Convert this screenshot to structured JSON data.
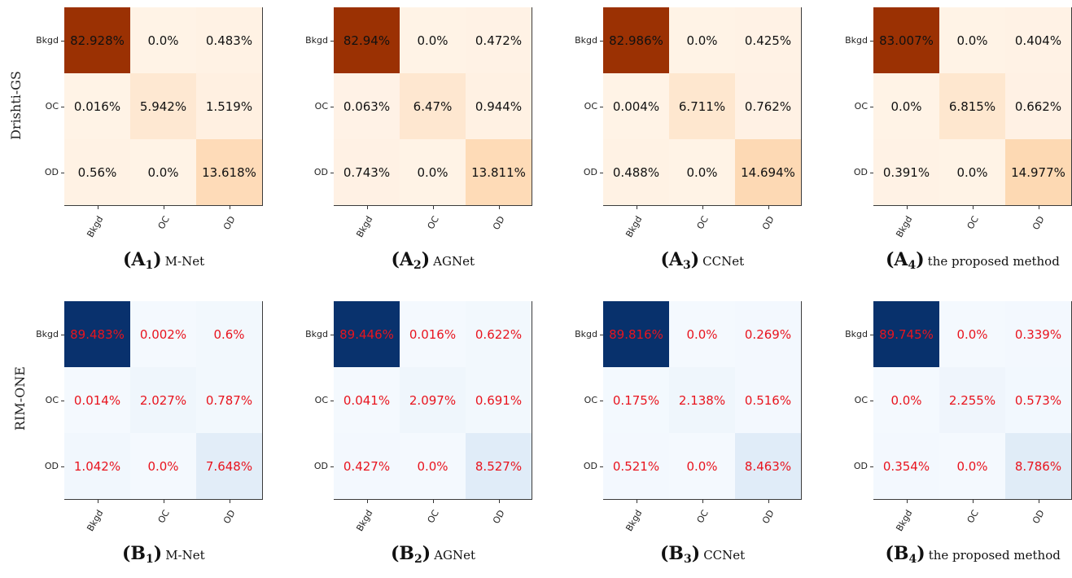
{
  "chart_data": [
    {
      "type": "heatmap",
      "dataset": "Drishti-GS",
      "colormap": "Oranges",
      "text_color": "#111111",
      "rows": [
        "Bkgd",
        "OC",
        "OD"
      ],
      "cols": [
        "Bkgd",
        "OC",
        "OD"
      ],
      "values": [
        [
          "82.928%",
          "0.0%",
          "0.483%"
        ],
        [
          "0.016%",
          "5.942%",
          "1.519%"
        ],
        [
          "0.56%",
          "0.0%",
          "13.618%"
        ]
      ],
      "caption": {
        "letter": "A",
        "sub": "1",
        "name": "M-Net"
      }
    },
    {
      "type": "heatmap",
      "dataset": "Drishti-GS",
      "colormap": "Oranges",
      "text_color": "#111111",
      "rows": [
        "Bkgd",
        "OC",
        "OD"
      ],
      "cols": [
        "Bkgd",
        "OC",
        "OD"
      ],
      "values": [
        [
          "82.94%",
          "0.0%",
          "0.472%"
        ],
        [
          "0.063%",
          "6.47%",
          "0.944%"
        ],
        [
          "0.743%",
          "0.0%",
          "13.811%"
        ]
      ],
      "caption": {
        "letter": "A",
        "sub": "2",
        "name": "AGNet"
      }
    },
    {
      "type": "heatmap",
      "dataset": "Drishti-GS",
      "colormap": "Oranges",
      "text_color": "#111111",
      "rows": [
        "Bkgd",
        "OC",
        "OD"
      ],
      "cols": [
        "Bkgd",
        "OC",
        "OD"
      ],
      "values": [
        [
          "82.986%",
          "0.0%",
          "0.425%"
        ],
        [
          "0.004%",
          "6.711%",
          "0.762%"
        ],
        [
          "0.488%",
          "0.0%",
          "14.694%"
        ]
      ],
      "caption": {
        "letter": "A",
        "sub": "3",
        "name": "CCNet"
      }
    },
    {
      "type": "heatmap",
      "dataset": "Drishti-GS",
      "colormap": "Oranges",
      "text_color": "#111111",
      "rows": [
        "Bkgd",
        "OC",
        "OD"
      ],
      "cols": [
        "Bkgd",
        "OC",
        "OD"
      ],
      "values": [
        [
          "83.007%",
          "0.0%",
          "0.404%"
        ],
        [
          "0.0%",
          "6.815%",
          "0.662%"
        ],
        [
          "0.391%",
          "0.0%",
          "14.977%"
        ]
      ],
      "caption": {
        "letter": "A",
        "sub": "4",
        "name": "the proposed method"
      }
    },
    {
      "type": "heatmap",
      "dataset": "RIM-ONE",
      "colormap": "Blues",
      "text_color": "#e8141e",
      "rows": [
        "Bkgd",
        "OC",
        "OD"
      ],
      "cols": [
        "Bkgd",
        "OC",
        "OD"
      ],
      "values": [
        [
          "89.483%",
          "0.002%",
          "0.6%"
        ],
        [
          "0.014%",
          "2.027%",
          "0.787%"
        ],
        [
          "1.042%",
          "0.0%",
          "7.648%"
        ]
      ],
      "caption": {
        "letter": "B",
        "sub": "1",
        "name": "M-Net"
      }
    },
    {
      "type": "heatmap",
      "dataset": "RIM-ONE",
      "colormap": "Blues",
      "text_color": "#e8141e",
      "rows": [
        "Bkgd",
        "OC",
        "OD"
      ],
      "cols": [
        "Bkgd",
        "OC",
        "OD"
      ],
      "values": [
        [
          "89.446%",
          "0.016%",
          "0.622%"
        ],
        [
          "0.041%",
          "2.097%",
          "0.691%"
        ],
        [
          "0.427%",
          "0.0%",
          "8.527%"
        ]
      ],
      "caption": {
        "letter": "B",
        "sub": "2",
        "name": "AGNet"
      }
    },
    {
      "type": "heatmap",
      "dataset": "RIM-ONE",
      "colormap": "Blues",
      "text_color": "#e8141e",
      "rows": [
        "Bkgd",
        "OC",
        "OD"
      ],
      "cols": [
        "Bkgd",
        "OC",
        "OD"
      ],
      "values": [
        [
          "89.816%",
          "0.0%",
          "0.269%"
        ],
        [
          "0.175%",
          "2.138%",
          "0.516%"
        ],
        [
          "0.521%",
          "0.0%",
          "8.463%"
        ]
      ],
      "caption": {
        "letter": "B",
        "sub": "3",
        "name": "CCNet"
      }
    },
    {
      "type": "heatmap",
      "dataset": "RIM-ONE",
      "colormap": "Blues",
      "text_color": "#e8141e",
      "rows": [
        "Bkgd",
        "OC",
        "OD"
      ],
      "cols": [
        "Bkgd",
        "OC",
        "OD"
      ],
      "values": [
        [
          "89.745%",
          "0.0%",
          "0.339%"
        ],
        [
          "0.0%",
          "2.255%",
          "0.573%"
        ],
        [
          "0.354%",
          "0.0%",
          "8.786%"
        ]
      ],
      "caption": {
        "letter": "B",
        "sub": "4",
        "name": "the proposed method"
      }
    }
  ],
  "row_labels": [
    "Drishti-GS",
    "RIM-ONE"
  ]
}
